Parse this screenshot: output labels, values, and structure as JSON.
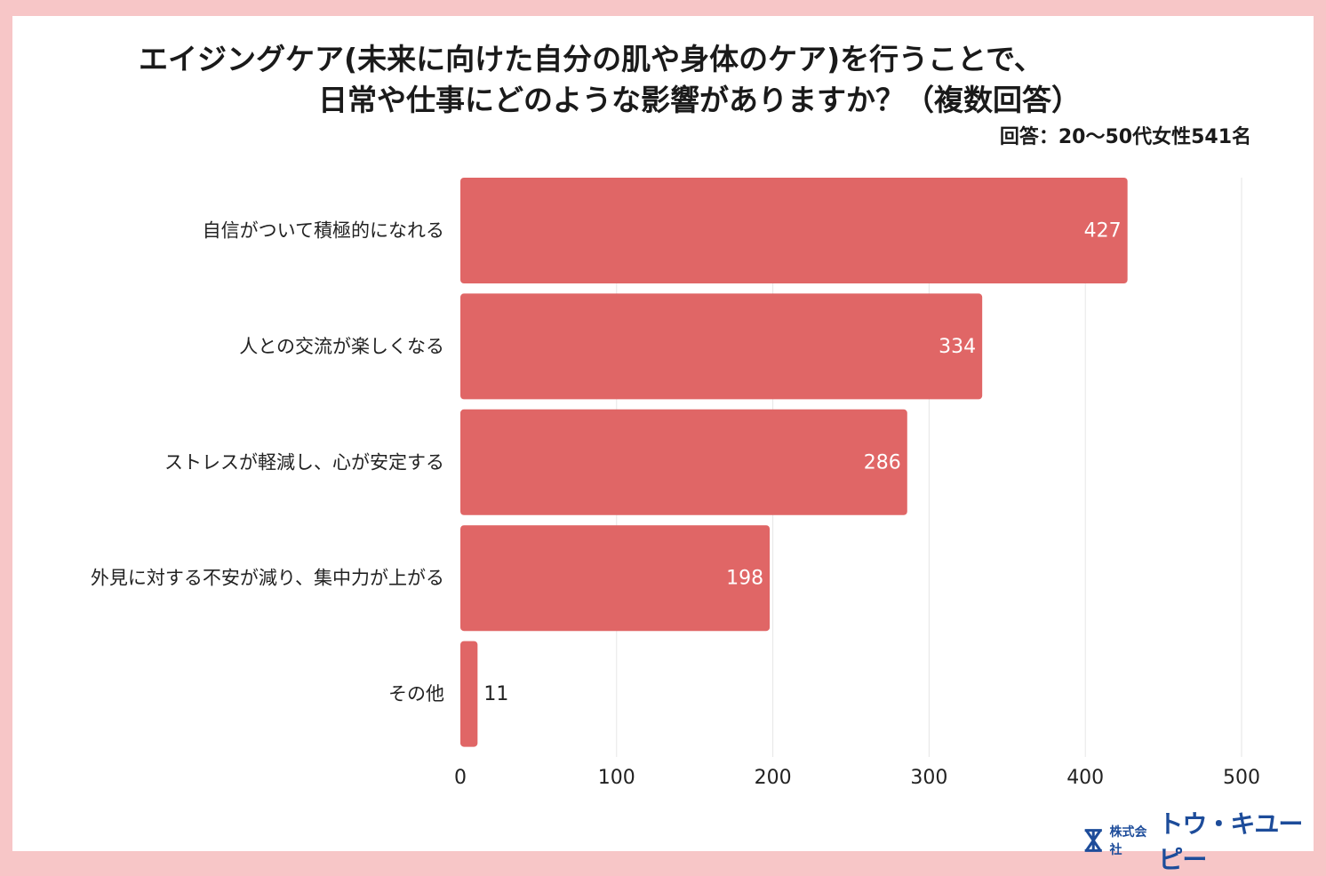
{
  "title_line1": "エイジングケア(未来に向けた自分の肌や身体のケア)を行うことで、",
  "title_line2": "日常や仕事にどのような影響がありますか？（複数回答）",
  "note": "回答：20〜50代女性541名",
  "colors": {
    "bar": "#e06666",
    "frame": "#f7c6c7",
    "grid": "#e6e6e6",
    "logo": "#1d4c9a"
  },
  "logo": {
    "icon": "hourglass-logo-icon",
    "small": "株式会社",
    "big": "トウ・キユーピー"
  },
  "chart_data": {
    "type": "bar",
    "orientation": "horizontal",
    "categories": [
      "自信がついて積極的になれる",
      "人との交流が楽しくなる",
      "ストレスが軽減し、心が安定する",
      "外見に対する不安が減り、集中力が上がる",
      "その他"
    ],
    "values": [
      427,
      334,
      286,
      198,
      11
    ],
    "xlim": [
      0,
      500
    ],
    "xticks": [
      "0",
      "100",
      "200",
      "300",
      "400",
      "500"
    ],
    "grid": true,
    "xlabel": "",
    "ylabel": ""
  }
}
